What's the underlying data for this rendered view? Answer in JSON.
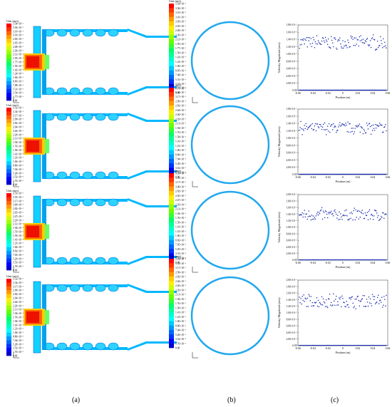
{
  "figure": {
    "panel_labels": [
      "(a)",
      "(b)",
      "(c)"
    ],
    "rows": [
      {
        "unit_a": "Unit (m/s)",
        "scale_a": [
          "3.54×10⁻²",
          "3.36×10⁻²",
          "3.19×10⁻²",
          "3.01×10⁻²",
          "2.83×10⁻²",
          "2.65×10⁻²",
          "2.48×10⁻²",
          "2.30×10⁻²",
          "2.12×10⁻²",
          "1.95×10⁻²",
          "1.77×10⁻²",
          "1.59×10⁻²",
          "1.42×10⁻²",
          "1.24×10⁻²",
          "1.06×10⁻²",
          "8.85×10⁻³",
          "7.08×10⁻³",
          "5.31×10⁻³",
          "3.54×10⁻³",
          "1.77×10⁻³",
          "0.00"
        ],
        "unit_b": "Unit (m/s)",
        "scale_b": [
          "3.54×10⁻²",
          "3.36×10⁻²",
          "3.19×10⁻²",
          "3.01×10⁻²",
          "2.83×10⁻²",
          "2.65×10⁻²",
          "2.48×10⁻²",
          "2.30×10⁻²",
          "2.12×10⁻²",
          "1.95×10⁻²",
          "1.77×10⁻²",
          "1.59×10⁻²",
          "1.42×10⁻²",
          "1.24×10⁻²",
          "1.06×10⁻²",
          "8.85×10⁻³",
          "7.08×10⁻³",
          "5.31×10⁻³",
          "3.54×10⁻³",
          "1.77×10⁻³",
          "0.00"
        ]
      },
      {
        "unit_a": "Unit (m/s)",
        "scale_a": [
          "3.52×10⁻²",
          "3.34×10⁻²",
          "3.17×10⁻²",
          "2.99×10⁻²",
          "2.82×10⁻²",
          "2.64×10⁻²",
          "2.46×10⁻²",
          "2.29×10⁻²",
          "2.11×10⁻²",
          "1.94×10⁻²",
          "1.76×10⁻²",
          "1.58×10⁻²",
          "1.41×10⁻²",
          "1.23×10⁻²",
          "1.06×10⁻²",
          "8.80×10⁻³",
          "7.04×10⁻³",
          "5.28×10⁻³",
          "3.52×10⁻³",
          "1.76×10⁻³",
          "0.00"
        ],
        "unit_b": "Unit (m/s)",
        "scale_b": [
          "3.52×10⁻²",
          "3.34×10⁻²",
          "3.17×10⁻²",
          "2.99×10⁻²",
          "2.82×10⁻²",
          "2.64×10⁻²",
          "2.46×10⁻²",
          "2.29×10⁻²",
          "2.11×10⁻²",
          "1.94×10⁻²",
          "1.76×10⁻²",
          "1.58×10⁻²",
          "1.41×10⁻²",
          "1.23×10⁻²",
          "1.06×10⁻²",
          "8.80×10⁻³",
          "7.04×10⁻³",
          "5.28×10⁻³",
          "3.52×10⁻³",
          "1.76×10⁻³",
          "0.00"
        ]
      },
      {
        "unit_a": "Unit (m/s)",
        "scale_a": [
          "3.53×10⁻²",
          "3.35×10⁻²",
          "3.17×10⁻²",
          "3.00×10⁻²",
          "2.82×10⁻²",
          "2.65×10⁻²",
          "2.47×10⁻²",
          "2.29×10⁻²",
          "2.12×10⁻²",
          "1.94×10⁻²",
          "1.76×10⁻²",
          "1.59×10⁻²",
          "1.41×10⁻²",
          "1.23×10⁻²",
          "1.06×10⁻²",
          "8.82×10⁻³",
          "7.05×10⁻³",
          "5.29×10⁻³",
          "3.53×10⁻³",
          "1.76×10⁻³",
          "0.00"
        ],
        "unit_b": "Unit (m/s)",
        "scale_b": [
          "3.53×10⁻²",
          "3.35×10⁻²",
          "3.17×10⁻²",
          "3.00×10⁻²",
          "2.82×10⁻²",
          "2.65×10⁻²",
          "2.47×10⁻²",
          "2.29×10⁻²",
          "2.12×10⁻²",
          "1.94×10⁻²",
          "1.76×10⁻²",
          "1.59×10⁻²",
          "1.41×10⁻²",
          "1.23×10⁻²",
          "1.06×10⁻²",
          "8.82×10⁻³",
          "7.05×10⁻³",
          "5.29×10⁻³",
          "3.53×10⁻³",
          "1.76×10⁻³",
          "0.00"
        ]
      },
      {
        "unit_a": "Unit (m/s)",
        "scale_a": [
          "3.52×10⁻²",
          "3.34×10⁻²",
          "3.17×10⁻²",
          "2.99×10⁻²",
          "2.82×10⁻²",
          "2.64×10⁻²",
          "2.46×10⁻²",
          "2.29×10⁻²",
          "2.11×10⁻²",
          "1.94×10⁻²",
          "1.76×10⁻²",
          "1.58×10⁻²",
          "1.41×10⁻²",
          "1.23×10⁻²",
          "1.06×10⁻²",
          "8.80×10⁻³",
          "7.04×10⁻³",
          "5.28×10⁻³",
          "3.52×10⁻³",
          "1.76×10⁻³",
          "0.00"
        ],
        "unit_b": "Unit (m/s)",
        "scale_b": [
          "3.52×10⁻²",
          "3.34×10⁻²",
          "3.17×10⁻²",
          "2.99×10⁻²",
          "2.82×10⁻²",
          "2.64×10⁻²",
          "2.46×10⁻²",
          "2.29×10⁻²",
          "2.11×10⁻²",
          "1.94×10⁻²",
          "1.76×10⁻²",
          "1.58×10⁻²",
          "1.41×10⁻²",
          "1.23×10⁻²",
          "1.06×10⁻²",
          "8.80×10⁻³",
          "7.04×10⁻³",
          "5.28×10⁻³",
          "3.52×10⁻³",
          "1.76×10⁻³",
          "0.00"
        ]
      }
    ],
    "colors": {
      "contour_levels": [
        "#ff0000",
        "#ff3300",
        "#ff6600",
        "#ff9900",
        "#ffcc00",
        "#ffee00",
        "#ccff00",
        "#99ff00",
        "#66ff00",
        "#33ff33",
        "#00ff66",
        "#00ff99",
        "#00ffcc",
        "#00ffff",
        "#00ccff",
        "#0099ff",
        "#0066ff",
        "#0033ff",
        "#0000ff",
        "#0000cc",
        "#000099"
      ],
      "flow_fill": "#00b8ff",
      "ring": "#22a8ee",
      "scatter": "#1a2db0"
    }
  },
  "chart_data": [
    {
      "type": "scatter",
      "xlabel": "Position (m)",
      "ylabel": "Velocity Magnitude (m/s)",
      "xticks": [
        "-0.06",
        "-0.04",
        "-0.02",
        "0",
        "0.02",
        "0.04",
        "0.06"
      ],
      "yticks": [
        "0.00",
        "2.00×10⁻³",
        "4.00×10⁻³",
        "6.00×10⁻³",
        "8.00×10⁻³",
        "1.00×10⁻²",
        "1.20×10⁻²",
        "1.40×10⁻²",
        "1.60×10⁻²",
        "1.80×10⁻²"
      ],
      "xlim": [
        -0.06,
        0.06
      ],
      "ylim": [
        0,
        0.018
      ],
      "band_mean": 0.0132,
      "band_spread": 0.0016,
      "baseline": 0.0001
    },
    {
      "type": "scatter",
      "xlabel": "Position (m)",
      "ylabel": "Velocity Magnitude (m/s)",
      "xticks": [
        "-0.06",
        "-0.04",
        "-0.02",
        "0",
        "0.02",
        "0.04",
        "0.06"
      ],
      "yticks": [
        "0.00",
        "2.00×10⁻³",
        "4.00×10⁻³",
        "6.00×10⁻³",
        "8.00×10⁻³",
        "1.00×10⁻²",
        "1.20×10⁻²",
        "1.40×10⁻²",
        "1.60×10⁻²",
        "1.80×10⁻²"
      ],
      "xlim": [
        -0.06,
        0.06
      ],
      "ylim": [
        0,
        0.018
      ],
      "band_mean": 0.0128,
      "band_spread": 0.0013,
      "baseline": 0.0001
    },
    {
      "type": "scatter",
      "xlabel": "Position (m)",
      "ylabel": "Velocity Magnitude (m/s)",
      "xticks": [
        "-0.06",
        "-0.04",
        "-0.02",
        "0",
        "0.02",
        "0.04",
        "0.06"
      ],
      "yticks": [
        "0.00",
        "2.00×10⁻³",
        "4.00×10⁻³",
        "6.00×10⁻³",
        "8.00×10⁻³",
        "1.00×10⁻²",
        "1.20×10⁻²",
        "1.40×10⁻²",
        "1.60×10⁻²",
        "1.80×10⁻²",
        "2.00×10⁻²"
      ],
      "xlim": [
        -0.06,
        0.06
      ],
      "ylim": [
        0,
        0.02
      ],
      "band_mean": 0.0138,
      "band_spread": 0.0016,
      "baseline": 0.0001
    },
    {
      "type": "scatter",
      "xlabel": "Position (m)",
      "ylabel": "Velocity Magnitude (m/s)",
      "xticks": [
        "-0.06",
        "-0.04",
        "-0.02",
        "0",
        "0.02",
        "0.04",
        "0.06"
      ],
      "yticks": [
        "0.00",
        "2.00×10⁻³",
        "4.00×10⁻³",
        "6.00×10⁻³",
        "8.00×10⁻³",
        "1.00×10⁻²",
        "1.20×10⁻²",
        "1.40×10⁻²",
        "1.60×10⁻²",
        "1.80×10⁻²",
        "2.00×10⁻²"
      ],
      "xlim": [
        -0.06,
        0.06
      ],
      "ylim": [
        0,
        0.02
      ],
      "band_mean": 0.0136,
      "band_spread": 0.0017,
      "baseline": 0.0001
    }
  ]
}
